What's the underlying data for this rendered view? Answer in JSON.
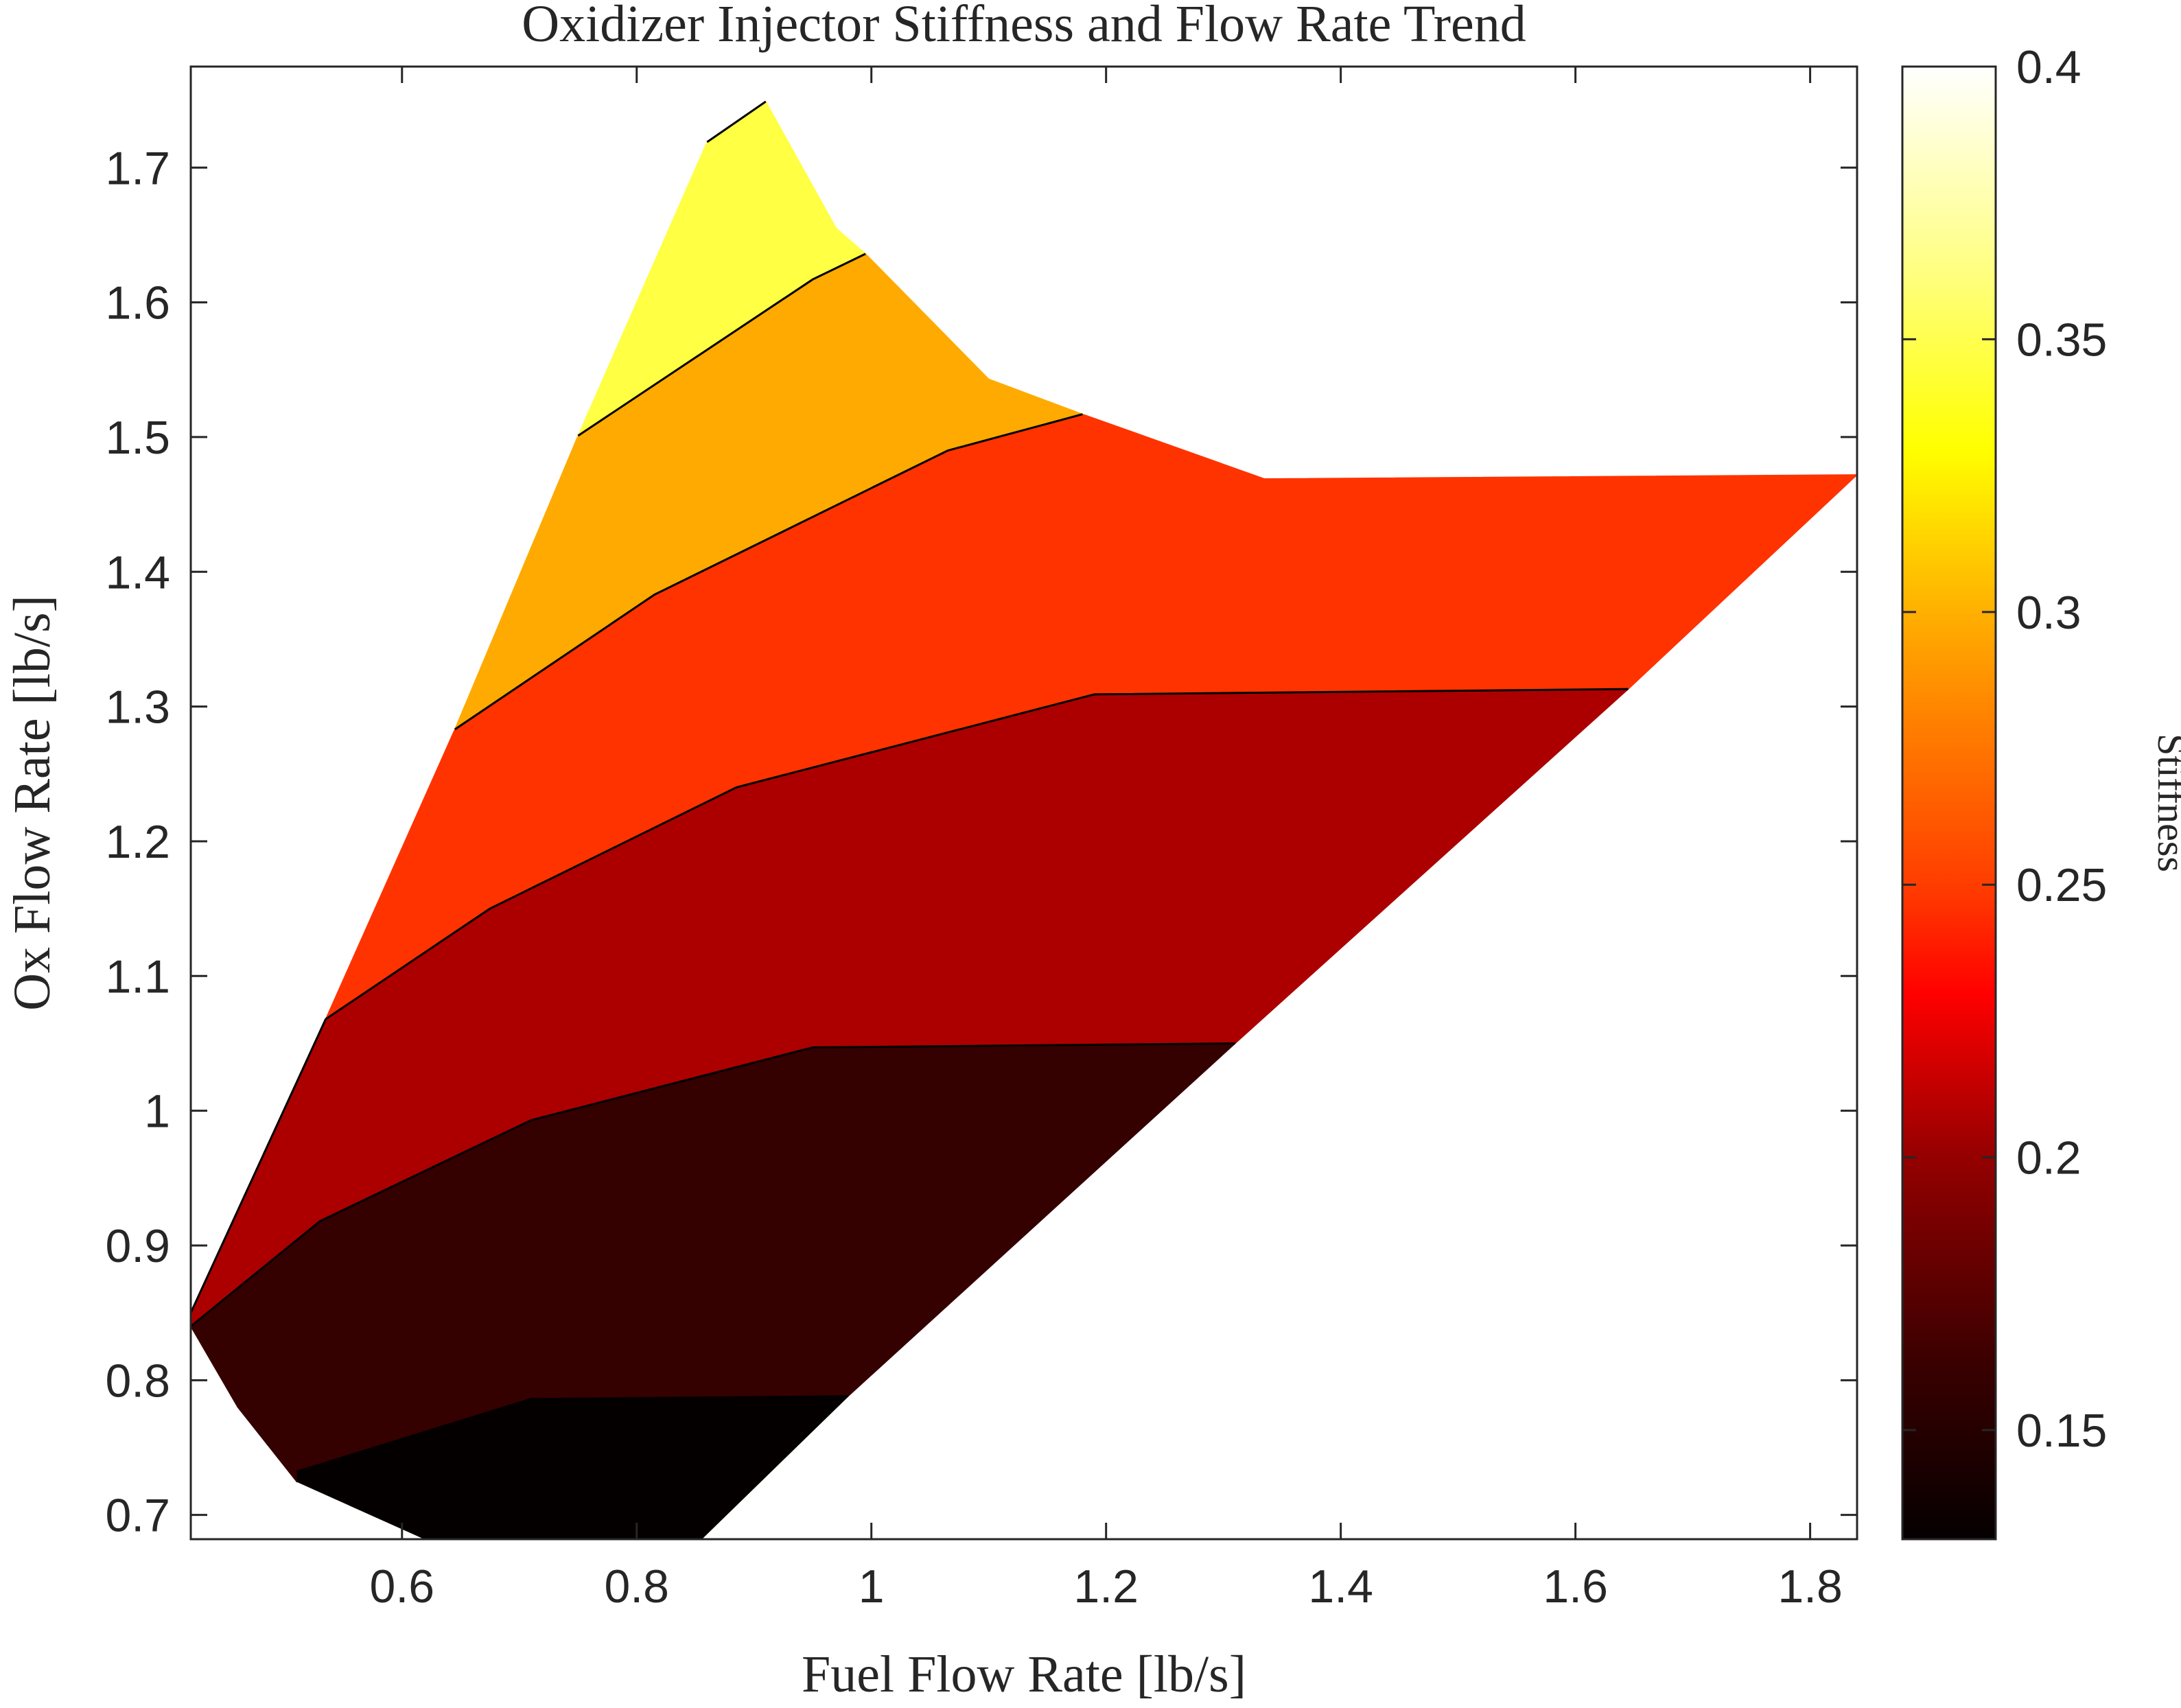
{
  "chart_data": {
    "type": "contourf",
    "title": "Oxidizer Injector Stiffness and Flow Rate Trend",
    "xlabel": "Fuel Flow Rate [lb/s]",
    "ylabel": "Ox Flow Rate [lb/s]",
    "colorbar_label": "Stiffness",
    "xlim": [
      0.42,
      1.84
    ],
    "ylim": [
      0.682,
      1.775
    ],
    "x_ticks": [
      "0.6",
      "0.8",
      "1",
      "1.2",
      "1.4",
      "1.6",
      "1.8"
    ],
    "y_ticks": [
      "0.7",
      "0.8",
      "0.9",
      "1",
      "1.1",
      "1.2",
      "1.3",
      "1.4",
      "1.5",
      "1.6",
      "1.7"
    ],
    "colorbar_range": [
      0.13,
      0.4
    ],
    "colorbar_ticks": [
      "0.15",
      "0.2",
      "0.25",
      "0.3",
      "0.35",
      "0.4"
    ],
    "colormap": "hot",
    "grid": false,
    "boundary": [
      [
        0.42,
        0.84
      ],
      [
        0.46,
        0.78
      ],
      [
        0.51,
        0.725
      ],
      [
        0.62,
        0.682
      ],
      [
        0.855,
        0.682
      ],
      [
        1.31,
        1.05
      ],
      [
        1.645,
        1.313
      ],
      [
        1.84,
        1.472
      ],
      [
        1.335,
        1.469
      ],
      [
        1.18,
        1.517
      ],
      [
        1.1,
        1.543
      ],
      [
        0.97,
        1.655
      ],
      [
        0.91,
        1.749
      ],
      [
        0.86,
        1.719
      ],
      [
        0.75,
        1.501
      ],
      [
        0.645,
        1.283
      ],
      [
        0.535,
        1.068
      ]
    ],
    "levels": [
      {
        "min": 0.13,
        "max": 0.15,
        "color": "#050000"
      },
      {
        "min": 0.15,
        "max": 0.18,
        "color": "#350000"
      },
      {
        "min": 0.18,
        "max": 0.22,
        "color": "#AC0000"
      },
      {
        "min": 0.22,
        "max": 0.26,
        "color": "#FF3300"
      },
      {
        "min": 0.26,
        "max": 0.31,
        "color": "#FFAA00"
      },
      {
        "min": 0.31,
        "max": 0.36,
        "color": "#FFFF44"
      }
    ],
    "contour_lines": [
      [
        [
          0.51,
          0.732
        ],
        [
          0.71,
          0.786
        ],
        [
          0.98,
          0.788
        ]
      ],
      [
        [
          0.42,
          0.84
        ],
        [
          0.53,
          0.918
        ],
        [
          0.71,
          0.993
        ],
        [
          0.95,
          1.047
        ],
        [
          1.31,
          1.05
        ]
      ],
      [
        [
          0.42,
          0.85
        ],
        [
          0.535,
          1.068
        ],
        [
          0.675,
          1.15
        ],
        [
          0.885,
          1.24
        ],
        [
          1.19,
          1.309
        ],
        [
          1.645,
          1.313
        ]
      ],
      [
        [
          0.645,
          1.283
        ],
        [
          0.815,
          1.383
        ],
        [
          1.065,
          1.49
        ],
        [
          1.18,
          1.517
        ]
      ],
      [
        [
          0.75,
          1.501
        ],
        [
          0.95,
          1.617
        ],
        [
          0.995,
          1.636
        ]
      ],
      [
        [
          0.86,
          1.719
        ],
        [
          0.91,
          1.749
        ]
      ]
    ],
    "regions": [
      {
        "level": 0,
        "points": [
          [
            0.51,
            0.725
          ],
          [
            0.62,
            0.682
          ],
          [
            0.855,
            0.682
          ],
          [
            0.98,
            0.788
          ],
          [
            0.71,
            0.786
          ],
          [
            0.51,
            0.732
          ]
        ]
      },
      {
        "level": 1,
        "points": [
          [
            0.42,
            0.84
          ],
          [
            0.46,
            0.78
          ],
          [
            0.51,
            0.725
          ],
          [
            0.51,
            0.732
          ],
          [
            0.71,
            0.786
          ],
          [
            0.98,
            0.788
          ],
          [
            1.31,
            1.05
          ],
          [
            0.95,
            1.047
          ],
          [
            0.71,
            0.993
          ],
          [
            0.53,
            0.918
          ]
        ]
      },
      {
        "level": 2,
        "points": [
          [
            0.42,
            0.84
          ],
          [
            0.53,
            0.918
          ],
          [
            0.71,
            0.993
          ],
          [
            0.95,
            1.047
          ],
          [
            1.31,
            1.05
          ],
          [
            1.645,
            1.313
          ],
          [
            1.19,
            1.309
          ],
          [
            0.885,
            1.24
          ],
          [
            0.675,
            1.15
          ],
          [
            0.535,
            1.068
          ],
          [
            0.42,
            0.85
          ]
        ]
      },
      {
        "level": 3,
        "points": [
          [
            0.535,
            1.068
          ],
          [
            0.675,
            1.15
          ],
          [
            0.885,
            1.24
          ],
          [
            1.19,
            1.309
          ],
          [
            1.645,
            1.313
          ],
          [
            1.84,
            1.472
          ],
          [
            1.335,
            1.469
          ],
          [
            1.18,
            1.517
          ],
          [
            1.065,
            1.49
          ],
          [
            0.815,
            1.383
          ],
          [
            0.645,
            1.283
          ]
        ]
      },
      {
        "level": 4,
        "points": [
          [
            0.645,
            1.283
          ],
          [
            0.815,
            1.383
          ],
          [
            1.065,
            1.49
          ],
          [
            1.18,
            1.517
          ],
          [
            1.1,
            1.543
          ],
          [
            0.995,
            1.636
          ],
          [
            0.95,
            1.617
          ],
          [
            0.75,
            1.501
          ]
        ]
      },
      {
        "level": 5,
        "points": [
          [
            0.75,
            1.501
          ],
          [
            0.95,
            1.617
          ],
          [
            0.995,
            1.636
          ],
          [
            0.97,
            1.655
          ],
          [
            0.91,
            1.749
          ],
          [
            0.86,
            1.719
          ]
        ]
      }
    ]
  }
}
